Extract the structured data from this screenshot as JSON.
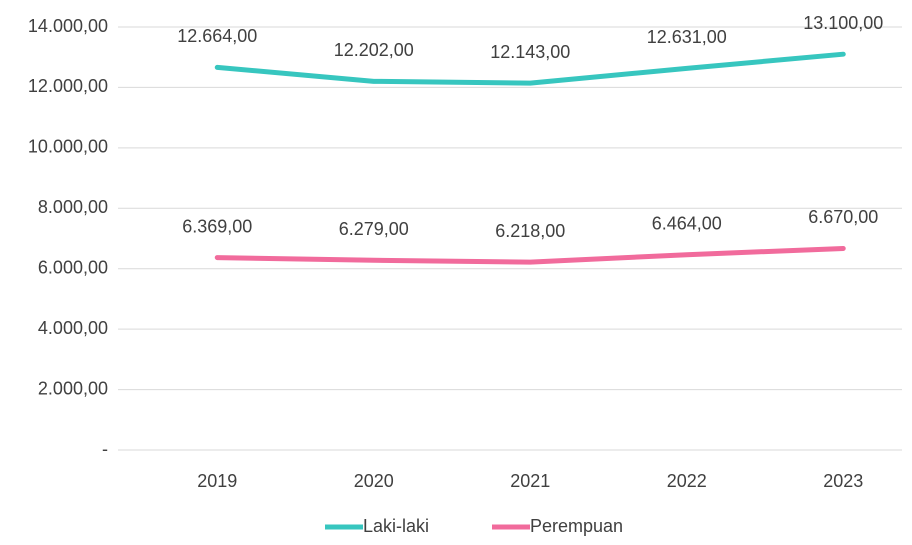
{
  "chart_data": {
    "type": "line",
    "categories": [
      "2019",
      "2020",
      "2021",
      "2022",
      "2023"
    ],
    "series": [
      {
        "name": "Laki-laki",
        "color": "#37c6bf",
        "values": [
          12664,
          12202,
          12143,
          12631,
          13100
        ],
        "value_labels": [
          "12.664,00",
          "12.202,00",
          "12.143,00",
          "12.631,00",
          "13.100,00"
        ]
      },
      {
        "name": "Perempuan",
        "color": "#f16b9c",
        "values": [
          6369,
          6279,
          6218,
          6464,
          6670
        ],
        "value_labels": [
          "6.369,00",
          "6.279,00",
          "6.218,00",
          "6.464,00",
          "6.670,00"
        ]
      }
    ],
    "ylim": [
      0,
      14000
    ],
    "yticks": [
      {
        "value": 0,
        "label": "-"
      },
      {
        "value": 2000,
        "label": "2.000,00"
      },
      {
        "value": 4000,
        "label": "4.000,00"
      },
      {
        "value": 6000,
        "label": "6.000,00"
      },
      {
        "value": 8000,
        "label": "8.000,00"
      },
      {
        "value": 10000,
        "label": "10.000,00"
      },
      {
        "value": 12000,
        "label": "12.000,00"
      },
      {
        "value": 14000,
        "label": "14.000,00"
      }
    ],
    "grid": true,
    "legend": "bottom"
  }
}
